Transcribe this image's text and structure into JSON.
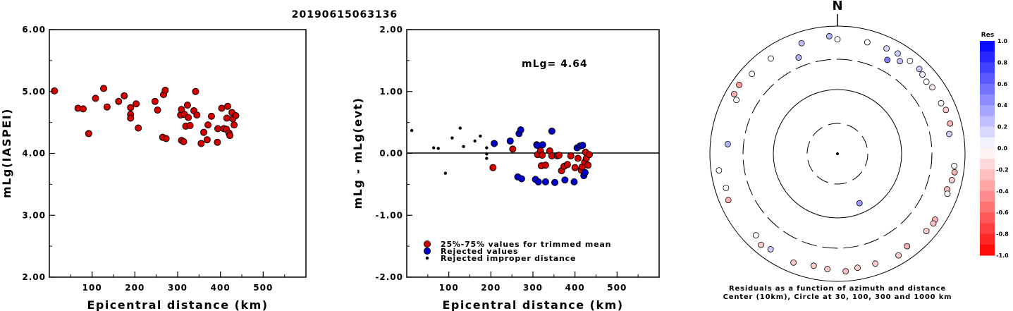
{
  "title": "20190615063136",
  "chart_data": [
    {
      "type": "scatter",
      "xlabel": "Epicentral distance (km)",
      "ylabel": "mLg(IASPEI)",
      "xlim": [
        0,
        600
      ],
      "ylim": [
        2.0,
        6.0
      ],
      "xticks": [
        "100",
        "200",
        "300",
        "400",
        "500"
      ],
      "yticks": [
        "2.00",
        "3.00",
        "4.00",
        "5.00",
        "6.00"
      ],
      "series": [
        {
          "color": "#d40000",
          "points": [
            [
              12,
              5.01
            ],
            [
              67,
              4.73
            ],
            [
              79,
              4.72
            ],
            [
              92,
              4.32
            ],
            [
              108,
              4.89
            ],
            [
              127,
              5.05
            ],
            [
              135,
              4.75
            ],
            [
              162,
              4.84
            ],
            [
              175,
              4.93
            ],
            [
              190,
              4.74
            ],
            [
              190,
              4.63
            ],
            [
              190,
              4.57
            ],
            [
              203,
              4.8
            ],
            [
              208,
              4.41
            ],
            [
              247,
              4.84
            ],
            [
              253,
              4.7
            ],
            [
              265,
              4.26
            ],
            [
              267,
              4.95
            ],
            [
              271,
              5.02
            ],
            [
              273,
              4.24
            ],
            [
              307,
              4.62
            ],
            [
              309,
              4.71
            ],
            [
              309,
              4.21
            ],
            [
              314,
              4.19
            ],
            [
              316,
              4.63
            ],
            [
              319,
              4.44
            ],
            [
              323,
              4.78
            ],
            [
              325,
              4.58
            ],
            [
              329,
              4.45
            ],
            [
              338,
              4.69
            ],
            [
              342,
              5.0
            ],
            [
              345,
              4.62
            ],
            [
              355,
              4.16
            ],
            [
              361,
              4.34
            ],
            [
              369,
              4.22
            ],
            [
              371,
              4.46
            ],
            [
              379,
              4.6
            ],
            [
              393,
              4.18
            ],
            [
              394,
              4.4
            ],
            [
              403,
              4.73
            ],
            [
              408,
              4.4
            ],
            [
              414,
              4.39
            ],
            [
              415,
              4.57
            ],
            [
              417,
              4.76
            ],
            [
              420,
              4.33
            ],
            [
              422,
              4.29
            ],
            [
              427,
              4.66
            ],
            [
              429,
              4.56
            ],
            [
              432,
              4.46
            ],
            [
              436,
              4.61
            ]
          ]
        }
      ]
    },
    {
      "type": "scatter",
      "xlabel": "Epicentral distance (km)",
      "ylabel": "mLg - mLg(evt)",
      "xlim": [
        0,
        600
      ],
      "ylim": [
        -2.0,
        2.0
      ],
      "xticks": [
        "100",
        "200",
        "300",
        "400",
        "500"
      ],
      "yticks": [
        "-2.00",
        "-1.00",
        "0.00",
        "1.00",
        "2.00"
      ],
      "annotation": "mLg= 4.64",
      "legend": [
        "25%-75% values for trimmed mean",
        "Rejected values",
        "Rejected improper distance"
      ],
      "series": [
        {
          "name": "25%-75% values for trimmed mean",
          "color": "#d40000",
          "points": [
            [
              205,
              -0.23
            ],
            [
              252,
              0.07
            ],
            [
              309,
              0.14
            ],
            [
              311,
              -0.02
            ],
            [
              318,
              0.04
            ],
            [
              320,
              -0.2
            ],
            [
              322,
              -0.03
            ],
            [
              330,
              -0.19
            ],
            [
              340,
              0.04
            ],
            [
              345,
              -0.04
            ],
            [
              358,
              -0.04
            ],
            [
              362,
              -0.03
            ],
            [
              368,
              -0.28
            ],
            [
              374,
              -0.21
            ],
            [
              382,
              -0.18
            ],
            [
              390,
              -0.04
            ],
            [
              400,
              -0.23
            ],
            [
              407,
              -0.08
            ],
            [
              415,
              -0.27
            ],
            [
              417,
              -0.22
            ],
            [
              423,
              -0.14
            ],
            [
              425,
              0.02
            ],
            [
              427,
              -0.08
            ],
            [
              431,
              -0.19
            ],
            [
              434,
              -0.02
            ]
          ]
        },
        {
          "name": "Rejected values",
          "color": "#0000cc",
          "points": [
            [
              208,
              0.16
            ],
            [
              246,
              0.2
            ],
            [
              264,
              -0.38
            ],
            [
              267,
              0.32
            ],
            [
              271,
              0.38
            ],
            [
              273,
              -0.41
            ],
            [
              306,
              -0.42
            ],
            [
              310,
              0.13
            ],
            [
              313,
              -0.46
            ],
            [
              323,
              0.14
            ],
            [
              330,
              -0.46
            ],
            [
              345,
              0.36
            ],
            [
              352,
              -0.47
            ],
            [
              376,
              -0.43
            ],
            [
              398,
              -0.46
            ],
            [
              405,
              0.09
            ],
            [
              412,
              0.12
            ],
            [
              418,
              0.13
            ],
            [
              421,
              -0.36
            ],
            [
              424,
              -0.31
            ]
          ]
        },
        {
          "name": "Rejected improper distance",
          "color": "#000000",
          "points": [
            [
              12,
              0.37
            ],
            [
              64,
              0.09
            ],
            [
              75,
              0.08
            ],
            [
              92,
              -0.32
            ],
            [
              108,
              0.25
            ],
            [
              127,
              0.41
            ],
            [
              135,
              0.11
            ],
            [
              162,
              0.2
            ],
            [
              175,
              0.28
            ],
            [
              190,
              0.09
            ],
            [
              190,
              -0.01
            ],
            [
              190,
              -0.08
            ]
          ]
        }
      ]
    },
    {
      "type": "scatter",
      "subtype": "polar",
      "north_label": "N",
      "caption_line1": "Residuals as a function of azimuth and distance",
      "caption_line2": "Center (10km), Circle at 30, 100, 300 and 1000 km",
      "colorbar": {
        "title": "Res",
        "ticks": [
          "1.0",
          "0.8",
          "0.6",
          "0.4",
          "0.2",
          "0.0",
          "-0.2",
          "-0.4",
          "-0.6",
          "-0.8",
          "-1.0"
        ],
        "range": [
          -1.0,
          1.0
        ]
      },
      "points": [
        {
          "az": 0,
          "dist": 620,
          "res": -0.05
        },
        {
          "az": 15,
          "dist": 640,
          "res": 0.0
        },
        {
          "az": 25,
          "dist": 660,
          "res": 0.15
        },
        {
          "az": 31,
          "dist": 680,
          "res": 0.2
        },
        {
          "az": 28,
          "dist": 460,
          "res": 0.5
        },
        {
          "az": 34,
          "dist": 560,
          "res": 0.25
        },
        {
          "az": 38,
          "dist": 700,
          "res": 0.0
        },
        {
          "az": 44,
          "dist": 700,
          "res": 0.2
        },
        {
          "az": 47,
          "dist": 660,
          "res": 0.05
        },
        {
          "az": 51,
          "dist": 620,
          "res": 0.0
        },
        {
          "az": 55,
          "dist": 650,
          "res": -0.1
        },
        {
          "az": 64,
          "dist": 640,
          "res": 0.0
        },
        {
          "az": 68,
          "dist": 680,
          "res": -0.2
        },
        {
          "az": 75,
          "dist": 670,
          "res": -0.3
        },
        {
          "az": 80,
          "dist": 600,
          "res": 0.2
        },
        {
          "az": 96,
          "dist": 690,
          "res": 0.0
        },
        {
          "az": 99,
          "dist": 720,
          "res": -0.3
        },
        {
          "az": 103,
          "dist": 690,
          "res": -0.2
        },
        {
          "az": 108,
          "dist": 640,
          "res": -0.25
        },
        {
          "az": 110,
          "dist": 680,
          "res": 0.0
        },
        {
          "az": 124,
          "dist": 700,
          "res": -0.3
        },
        {
          "az": 126,
          "dist": 720,
          "res": -0.25
        },
        {
          "az": 131,
          "dist": 700,
          "res": -0.2
        },
        {
          "az": 143,
          "dist": 650,
          "res": -0.3
        },
        {
          "az": 149,
          "dist": 720,
          "res": -0.2
        },
        {
          "az": 161,
          "dist": 660,
          "res": -0.2
        },
        {
          "az": 170,
          "dist": 650,
          "res": -0.2
        },
        {
          "az": 176,
          "dist": 700,
          "res": -0.25
        },
        {
          "az": 185,
          "dist": 650,
          "res": -0.2
        },
        {
          "az": 192,
          "dist": 620,
          "res": -0.2
        },
        {
          "az": 202,
          "dist": 690,
          "res": -0.2
        },
        {
          "az": 215,
          "dist": 670,
          "res": 0.2
        },
        {
          "az": 220,
          "dist": 730,
          "res": -0.2
        },
        {
          "az": 225,
          "dist": 640,
          "res": 0.0
        },
        {
          "az": 247,
          "dist": 720,
          "res": -0.3
        },
        {
          "az": 253,
          "dist": 670,
          "res": 0.0
        },
        {
          "az": 262,
          "dist": 750,
          "res": 0.0
        },
        {
          "az": 275,
          "dist": 530,
          "res": 0.3
        },
        {
          "az": 298,
          "dist": 620,
          "res": 0.0
        },
        {
          "az": 300,
          "dist": 740,
          "res": -0.3
        },
        {
          "az": 305,
          "dist": 760,
          "res": -0.4
        },
        {
          "az": 313,
          "dist": 680,
          "res": 0.0
        },
        {
          "az": 325,
          "dist": 660,
          "res": 0.0
        },
        {
          "az": 338,
          "dist": 420,
          "res": 0.3
        },
        {
          "az": 342,
          "dist": 660,
          "res": 0.25
        },
        {
          "az": 356,
          "dist": 700,
          "res": 0.3
        },
        {
          "az": 156,
          "dist": 70,
          "res": 0.4
        }
      ]
    }
  ]
}
